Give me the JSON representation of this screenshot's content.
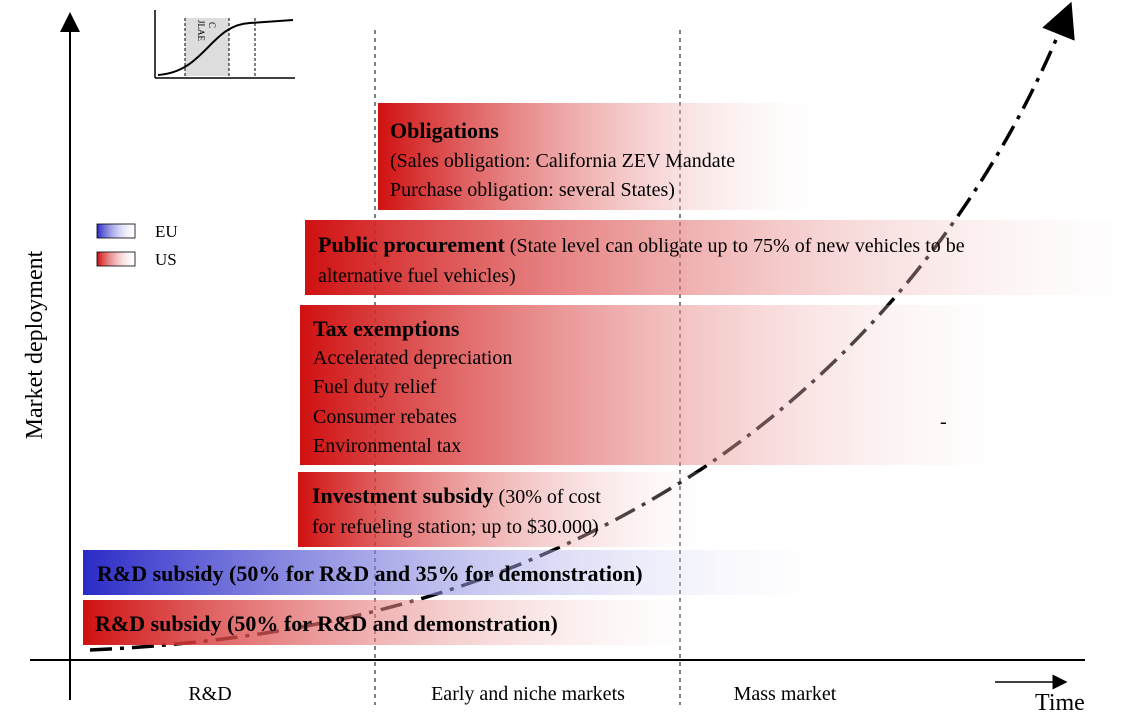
{
  "axes": {
    "y_label": "Market deployment",
    "x_label": "Time"
  },
  "phases": [
    "R&D",
    "Early and niche markets",
    "Mass market"
  ],
  "inset": {
    "label_lines": [
      "JLAE",
      "C"
    ]
  },
  "legend": [
    {
      "name": "EU",
      "color": "#2a2ac8"
    },
    {
      "name": "US",
      "color": "#d01010"
    }
  ],
  "boxes": {
    "obligations": {
      "title": "Obligations",
      "lines": [
        "(Sales obligation: California ZEV Mandate",
        "Purchase obligation: several States)"
      ]
    },
    "public_procurement": {
      "title": "Public procurement",
      "text": "(State level can obligate up to 75% of new vehicles to be",
      "text2": "alternative fuel vehicles)"
    },
    "tax_exemptions": {
      "title": "Tax exemptions",
      "lines": [
        "Accelerated depreciation",
        "Fuel duty relief",
        "Consumer rebates",
        "Environmental tax"
      ],
      "mark": "-"
    },
    "investment_subsidy": {
      "title": "Investment subsidy",
      "text": "(30% of cost",
      "text2": "for refueling station; up to $30.000)"
    },
    "rd_eu": {
      "title": "R&D subsidy (50% for R&D and 35% for demonstration)"
    },
    "rd_us": {
      "title": "R&D subsidy (50% for R&D and demonstration)"
    }
  }
}
